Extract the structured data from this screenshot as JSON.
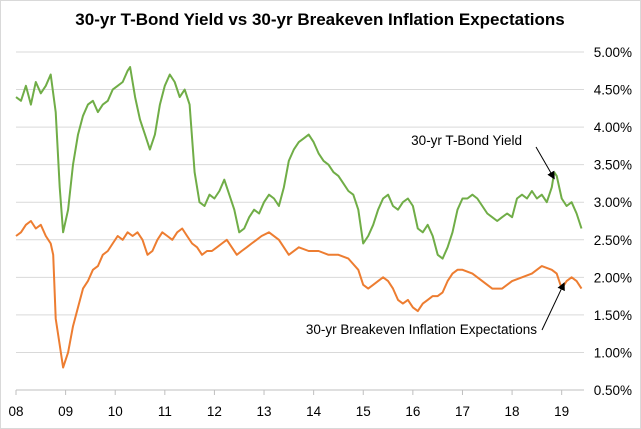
{
  "chart_data": {
    "type": "line",
    "title": "30-yr T-Bond Yield vs 30-yr Breakeven Inflation Expectations",
    "xlabel": "",
    "ylabel": "",
    "x_ticks": [
      "08",
      "09",
      "10",
      "11",
      "12",
      "13",
      "14",
      "15",
      "16",
      "17",
      "18",
      "19"
    ],
    "y_ticks": [
      "0.50%",
      "1.00%",
      "1.50%",
      "2.00%",
      "2.50%",
      "3.00%",
      "3.50%",
      "4.00%",
      "4.50%",
      "5.00%"
    ],
    "xlim": [
      2008.0,
      2019.45
    ],
    "ylim": [
      0.5,
      5.0
    ],
    "y_axis_side": "right",
    "grid": "horizontal",
    "annotations": [
      {
        "text": "30-yr T-Bond Yield",
        "series": "30-yr T-Bond Yield",
        "points_to": [
          2018.85,
          3.38
        ]
      },
      {
        "text": "30-yr Breakeven Inflation Expectations",
        "series": "30-yr Breakeven Inflation Expectations",
        "points_to": [
          2019.05,
          1.95
        ]
      }
    ],
    "series": [
      {
        "name": "30-yr T-Bond Yield",
        "color": "#70ad47",
        "x": [
          2008.0,
          2008.1,
          2008.2,
          2008.3,
          2008.4,
          2008.5,
          2008.6,
          2008.7,
          2008.8,
          2008.88,
          2008.95,
          2009.05,
          2009.15,
          2009.25,
          2009.35,
          2009.45,
          2009.55,
          2009.65,
          2009.75,
          2009.85,
          2009.95,
          2010.05,
          2010.15,
          2010.25,
          2010.3,
          2010.4,
          2010.5,
          2010.6,
          2010.7,
          2010.8,
          2010.9,
          2011.0,
          2011.1,
          2011.2,
          2011.3,
          2011.4,
          2011.5,
          2011.6,
          2011.7,
          2011.8,
          2011.9,
          2012.0,
          2012.1,
          2012.2,
          2012.3,
          2012.4,
          2012.5,
          2012.6,
          2012.7,
          2012.8,
          2012.9,
          2013.0,
          2013.1,
          2013.2,
          2013.3,
          2013.4,
          2013.5,
          2013.6,
          2013.7,
          2013.8,
          2013.9,
          2014.0,
          2014.1,
          2014.2,
          2014.3,
          2014.4,
          2014.5,
          2014.6,
          2014.7,
          2014.8,
          2014.9,
          2015.0,
          2015.1,
          2015.2,
          2015.3,
          2015.4,
          2015.5,
          2015.6,
          2015.7,
          2015.8,
          2015.9,
          2016.0,
          2016.1,
          2016.2,
          2016.3,
          2016.4,
          2016.5,
          2016.6,
          2016.7,
          2016.8,
          2016.9,
          2017.0,
          2017.1,
          2017.2,
          2017.3,
          2017.4,
          2017.5,
          2017.6,
          2017.7,
          2017.8,
          2017.9,
          2018.0,
          2018.1,
          2018.2,
          2018.3,
          2018.4,
          2018.5,
          2018.6,
          2018.7,
          2018.8,
          2018.85,
          2018.9,
          2019.0,
          2019.1,
          2019.2,
          2019.3,
          2019.4
        ],
        "y": [
          4.4,
          4.35,
          4.55,
          4.3,
          4.6,
          4.45,
          4.55,
          4.7,
          4.2,
          3.2,
          2.6,
          2.9,
          3.5,
          3.9,
          4.15,
          4.3,
          4.35,
          4.2,
          4.3,
          4.35,
          4.5,
          4.55,
          4.6,
          4.75,
          4.8,
          4.4,
          4.1,
          3.9,
          3.7,
          3.9,
          4.3,
          4.55,
          4.7,
          4.6,
          4.4,
          4.5,
          4.3,
          3.4,
          3.0,
          2.95,
          3.1,
          3.05,
          3.15,
          3.3,
          3.1,
          2.9,
          2.6,
          2.65,
          2.8,
          2.9,
          2.85,
          3.0,
          3.1,
          3.05,
          2.95,
          3.2,
          3.55,
          3.7,
          3.8,
          3.85,
          3.9,
          3.8,
          3.65,
          3.55,
          3.5,
          3.4,
          3.35,
          3.25,
          3.15,
          3.1,
          2.9,
          2.45,
          2.55,
          2.7,
          2.9,
          3.05,
          3.1,
          2.95,
          2.9,
          3.0,
          3.05,
          2.95,
          2.65,
          2.6,
          2.7,
          2.55,
          2.3,
          2.25,
          2.4,
          2.6,
          2.9,
          3.05,
          3.05,
          3.1,
          3.05,
          2.95,
          2.85,
          2.8,
          2.75,
          2.8,
          2.85,
          2.8,
          3.05,
          3.1,
          3.05,
          3.15,
          3.05,
          3.1,
          3.0,
          3.2,
          3.4,
          3.35,
          3.05,
          2.95,
          3.0,
          2.85,
          2.65
        ]
      },
      {
        "name": "30-yr Breakeven Inflation Expectations",
        "color": "#ed7d31",
        "x": [
          2008.0,
          2008.1,
          2008.2,
          2008.3,
          2008.4,
          2008.5,
          2008.6,
          2008.7,
          2008.75,
          2008.8,
          2008.88,
          2008.95,
          2009.05,
          2009.15,
          2009.25,
          2009.35,
          2009.45,
          2009.55,
          2009.65,
          2009.75,
          2009.85,
          2009.95,
          2010.05,
          2010.15,
          2010.25,
          2010.35,
          2010.45,
          2010.55,
          2010.65,
          2010.75,
          2010.85,
          2010.95,
          2011.05,
          2011.15,
          2011.25,
          2011.35,
          2011.45,
          2011.55,
          2011.65,
          2011.75,
          2011.85,
          2011.95,
          2012.05,
          2012.15,
          2012.25,
          2012.35,
          2012.45,
          2012.55,
          2012.65,
          2012.75,
          2012.85,
          2012.95,
          2013.1,
          2013.3,
          2013.5,
          2013.7,
          2013.9,
          2014.1,
          2014.3,
          2014.5,
          2014.7,
          2014.9,
          2015.0,
          2015.1,
          2015.2,
          2015.3,
          2015.4,
          2015.5,
          2015.6,
          2015.7,
          2015.8,
          2015.9,
          2016.0,
          2016.1,
          2016.2,
          2016.3,
          2016.4,
          2016.5,
          2016.6,
          2016.7,
          2016.8,
          2016.9,
          2017.0,
          2017.2,
          2017.4,
          2017.6,
          2017.8,
          2018.0,
          2018.2,
          2018.4,
          2018.6,
          2018.8,
          2018.9,
          2019.0,
          2019.1,
          2019.2,
          2019.3,
          2019.4
        ],
        "y": [
          2.55,
          2.6,
          2.7,
          2.75,
          2.65,
          2.7,
          2.55,
          2.45,
          2.3,
          1.45,
          1.1,
          0.8,
          1.0,
          1.35,
          1.6,
          1.85,
          1.95,
          2.1,
          2.15,
          2.3,
          2.35,
          2.45,
          2.55,
          2.5,
          2.6,
          2.55,
          2.6,
          2.5,
          2.3,
          2.35,
          2.5,
          2.6,
          2.55,
          2.5,
          2.6,
          2.65,
          2.55,
          2.45,
          2.4,
          2.3,
          2.35,
          2.35,
          2.4,
          2.45,
          2.5,
          2.4,
          2.3,
          2.35,
          2.4,
          2.45,
          2.5,
          2.55,
          2.6,
          2.5,
          2.3,
          2.4,
          2.35,
          2.35,
          2.3,
          2.3,
          2.25,
          2.1,
          1.9,
          1.85,
          1.9,
          1.95,
          2.0,
          1.95,
          1.85,
          1.7,
          1.65,
          1.7,
          1.6,
          1.55,
          1.65,
          1.7,
          1.75,
          1.75,
          1.8,
          1.95,
          2.05,
          2.1,
          2.1,
          2.05,
          1.95,
          1.85,
          1.85,
          1.95,
          2.0,
          2.05,
          2.15,
          2.1,
          2.05,
          1.85,
          1.95,
          2.0,
          1.95,
          1.85
        ]
      }
    ]
  }
}
